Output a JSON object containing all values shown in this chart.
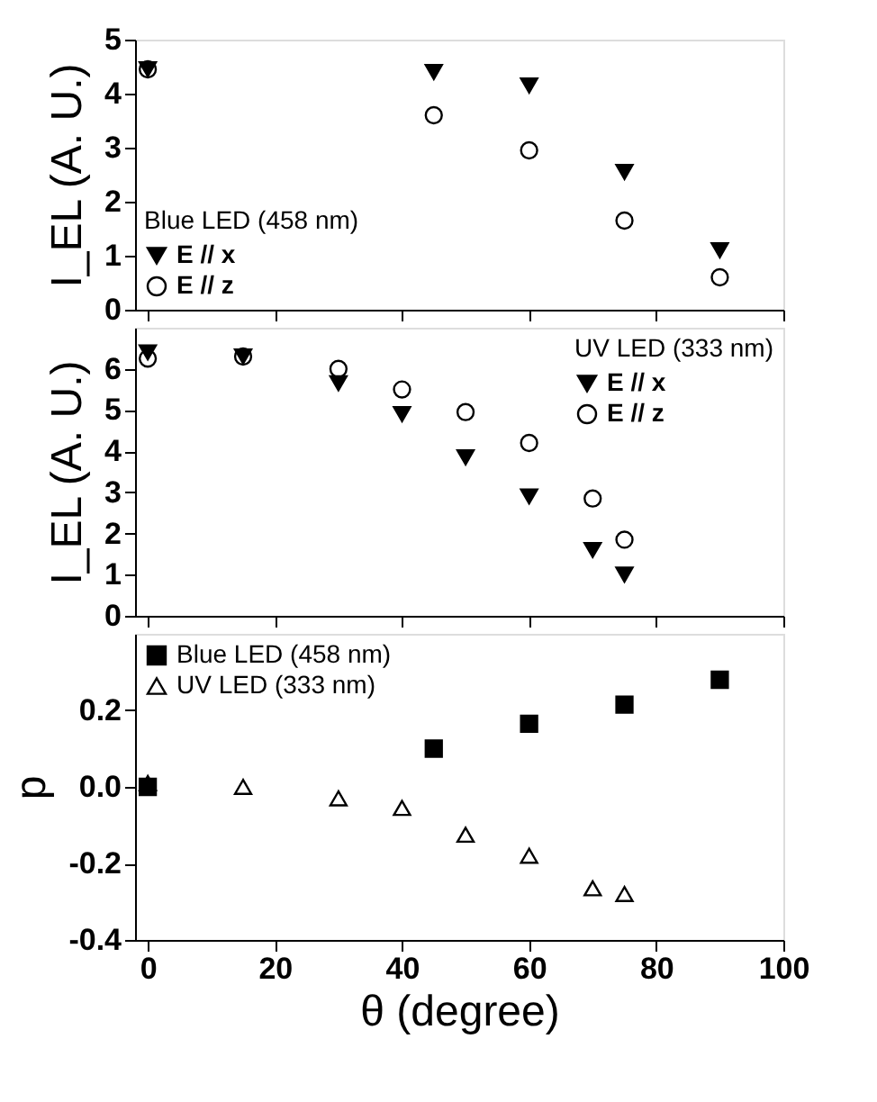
{
  "chart_data": [
    {
      "type": "scatter",
      "ylabel": "I_EL (A. U.)",
      "legend_title": "Blue LED (458 nm)",
      "legend": "bottom left",
      "grid": false,
      "tick_labels": "y",
      "xlim": [
        -2,
        100
      ],
      "xticks": [
        {
          "value": 0,
          "label": null
        },
        {
          "value": 20,
          "label": null
        },
        {
          "value": 40,
          "label": null
        },
        {
          "value": 60,
          "label": null
        },
        {
          "value": 80,
          "label": null
        },
        {
          "value": 100,
          "label": null
        }
      ],
      "ylim": [
        0,
        5
      ],
      "yticks": [
        0,
        1,
        2,
        3,
        4,
        5
      ],
      "series": [
        {
          "name": "E // x",
          "color": "#000000",
          "marker": "triangle-down",
          "x": [
            0,
            45,
            60,
            75,
            90
          ],
          "values": [
            4.45,
            4.4,
            4.15,
            2.55,
            1.1
          ]
        },
        {
          "name": "E // z",
          "color": "#000000",
          "marker": "circle-open",
          "x": [
            0,
            45,
            60,
            75,
            90
          ],
          "values": [
            4.45,
            3.6,
            2.95,
            1.65,
            0.6
          ]
        }
      ]
    },
    {
      "type": "scatter",
      "ylabel": "I_EL (A. U.)",
      "legend_title": "UV LED (333 nm)",
      "legend": "top right",
      "grid": false,
      "tick_labels": "y",
      "xlim": [
        -2,
        100
      ],
      "xticks": [
        {
          "value": 0,
          "label": null
        },
        {
          "value": 20,
          "label": null
        },
        {
          "value": 40,
          "label": null
        },
        {
          "value": 60,
          "label": null
        },
        {
          "value": 80,
          "label": null
        },
        {
          "value": 100,
          "label": null
        }
      ],
      "ylim": [
        0,
        7
      ],
      "yticks": [
        0,
        1,
        2,
        3,
        4,
        5,
        6
      ],
      "series": [
        {
          "name": "E // x",
          "color": "#000000",
          "marker": "triangle-down",
          "x": [
            0,
            15,
            30,
            40,
            50,
            60,
            70,
            75
          ],
          "values": [
            6.4,
            6.3,
            5.65,
            4.9,
            3.85,
            2.9,
            1.6,
            1.0
          ]
        },
        {
          "name": "E // z",
          "color": "#000000",
          "marker": "circle-open",
          "x": [
            0,
            15,
            30,
            40,
            50,
            60,
            70,
            75
          ],
          "values": [
            6.25,
            6.3,
            6.0,
            5.5,
            4.95,
            4.2,
            2.85,
            1.85
          ]
        }
      ]
    },
    {
      "type": "scatter",
      "xlabel": "θ (degree)",
      "ylabel": "p",
      "legend": "top left",
      "grid": false,
      "xlim": [
        -2,
        100
      ],
      "xticks": [
        0,
        20,
        40,
        60,
        80,
        100
      ],
      "ylim": [
        -0.4,
        0.4
      ],
      "yticks": [
        {
          "value": -0.4,
          "label": "-0.4"
        },
        {
          "value": -0.2,
          "label": "-0.2"
        },
        {
          "value": 0,
          "label": "0.0"
        },
        {
          "value": 0.2,
          "label": "0.2"
        }
      ],
      "series": [
        {
          "name": "Blue LED (458 nm)",
          "color": "#000000",
          "marker": "square",
          "x": [
            0,
            45,
            60,
            75,
            90
          ],
          "values": [
            0.0,
            0.1,
            0.165,
            0.215,
            0.28
          ]
        },
        {
          "name": "UV LED (333 nm)",
          "color": "#000000",
          "marker": "triangle-open",
          "x": [
            0,
            15,
            30,
            40,
            50,
            60,
            70,
            75
          ],
          "values": [
            0.01,
            0.0,
            -0.03,
            -0.055,
            -0.125,
            -0.18,
            -0.265,
            -0.28
          ]
        }
      ]
    }
  ]
}
